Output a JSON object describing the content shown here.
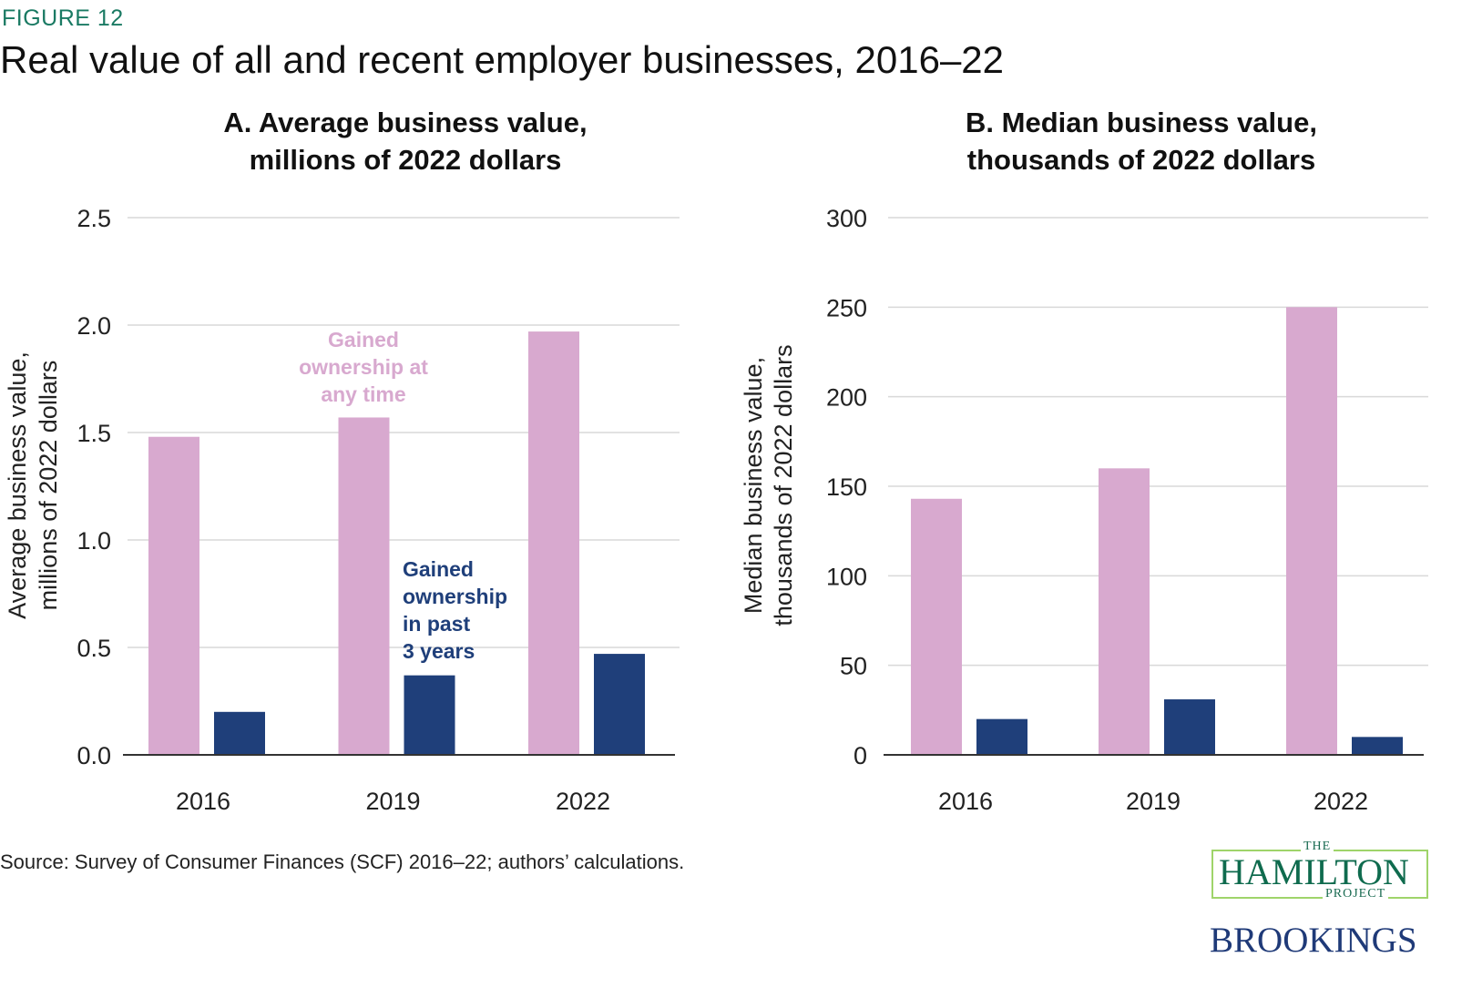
{
  "figure_label": "FIGURE 12",
  "title": "Real value of all and recent employer businesses, 2016–22",
  "source": "Source: Survey of Consumer Finances (SCF) 2016–22; authors’ calculations.",
  "logos": {
    "hamilton_the": "THE",
    "hamilton_name": "HAMILTON",
    "hamilton_project": "PROJECT",
    "brookings": "BROOKINGS"
  },
  "colors": {
    "gained_any_time": "#d8a9cf",
    "gained_past_3_years": "#1f3f7a",
    "figure_label": "#1a7a63",
    "gridline": "#d9d9d9"
  },
  "chart_data": [
    {
      "type": "bar",
      "title": [
        "A. Average business value,",
        "millions of 2022 dollars"
      ],
      "ylabel": [
        "Average business value,",
        "millions of 2022 dollars"
      ],
      "xlabel": "",
      "categories": [
        "2016",
        "2019",
        "2022"
      ],
      "ylim": [
        0,
        2.5
      ],
      "yticks": [
        "0.0",
        "0.5",
        "1.0",
        "1.5",
        "2.0",
        "2.5"
      ],
      "grid": true,
      "series": [
        {
          "name": "Gained ownership at any time",
          "label_lines": [
            "Gained",
            "ownership at",
            "any time"
          ],
          "values": [
            1.48,
            1.57,
            1.97
          ]
        },
        {
          "name": "Gained ownership in past 3 years",
          "label_lines": [
            "Gained",
            "ownership",
            "in past",
            "3 years"
          ],
          "values": [
            0.2,
            0.37,
            0.47
          ]
        }
      ]
    },
    {
      "type": "bar",
      "title": [
        "B. Median business value,",
        "thousands of 2022 dollars"
      ],
      "ylabel": [
        "Median business value,",
        "thousands of 2022 dollars"
      ],
      "xlabel": "",
      "categories": [
        "2016",
        "2019",
        "2022"
      ],
      "ylim": [
        0,
        300
      ],
      "yticks": [
        "0",
        "50",
        "100",
        "150",
        "200",
        "250",
        "300"
      ],
      "grid": true,
      "series": [
        {
          "name": "Gained ownership at any time",
          "values": [
            143,
            160,
            250
          ]
        },
        {
          "name": "Gained ownership in past 3 years",
          "values": [
            20,
            31,
            10
          ]
        }
      ]
    }
  ]
}
